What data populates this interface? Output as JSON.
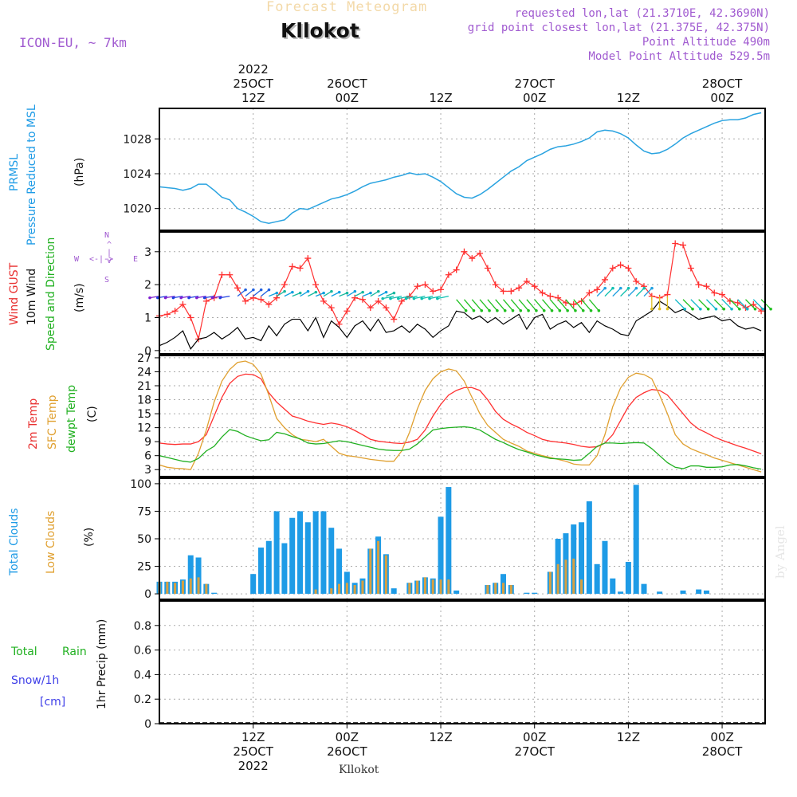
{
  "header": {
    "faded_title": "Forecast Meteogram",
    "location": "Kllokot",
    "model": "ICON-EU, ~ 7km",
    "requested": "requested lon,lat (21.3710E, 42.3690N)",
    "grid_point": "grid point closest lon,lat (21.375E, 42.375N)",
    "point_altitude": "Point Altitude 490m",
    "model_altitude": "Model Point Altitude 529.5m",
    "watermark": "by Angel",
    "bottom_location": "Kllokot"
  },
  "time_axis": {
    "top": [
      {
        "t": 12,
        "lines": [
          "2022",
          "25OCT",
          "12Z"
        ]
      },
      {
        "t": 24,
        "lines": [
          "26OCT",
          "00Z"
        ]
      },
      {
        "t": 36,
        "lines": [
          "12Z"
        ]
      },
      {
        "t": 48,
        "lines": [
          "27OCT",
          "00Z"
        ]
      },
      {
        "t": 60,
        "lines": [
          "12Z"
        ]
      },
      {
        "t": 72,
        "lines": [
          "28OCT",
          "00Z"
        ]
      }
    ],
    "bottom": [
      {
        "t": 12,
        "lines": [
          "12Z",
          "25OCT",
          "2022"
        ]
      },
      {
        "t": 24,
        "lines": [
          "00Z",
          "26OCT"
        ]
      },
      {
        "t": 36,
        "lines": [
          "12Z"
        ]
      },
      {
        "t": 48,
        "lines": [
          "00Z",
          "27OCT"
        ]
      },
      {
        "t": 60,
        "lines": [
          "12Z"
        ]
      },
      {
        "t": 72,
        "lines": [
          "00Z",
          "28OCT"
        ]
      }
    ]
  },
  "panel_labels": {
    "pressure": {
      "a": "PRMSL",
      "b": "Pressure Reduced to MSL",
      "unit": "(hPa)"
    },
    "wind": {
      "gust": "Wind GUST",
      "wind10": "10m Wind",
      "dir": "Speed and Direction",
      "unit": "(m/s)"
    },
    "compass": {
      "n": "N",
      "s": "S",
      "w": "W",
      "e": "E",
      "arrow": "<-|->"
    },
    "temp": {
      "t2m": "2m Temp",
      "sfc": "SFC Temp",
      "dew": "dewpt Temp",
      "unit": "(C)"
    },
    "clouds": {
      "total": "Total Clouds",
      "low": "Low Clouds",
      "unit": "(%)"
    },
    "precip": {
      "total": "Total",
      "rain": "Rain",
      "snow": "Snow/1h",
      "cm": "[cm]",
      "axis": "1hr Precip (mm)"
    }
  },
  "chart_data": [
    {
      "type": "line",
      "title": "PRMSL Pressure Reduced to MSL",
      "ylabel": "(hPa)",
      "x_unit": "hours from 2022-10-25 00Z",
      "ylim": [
        1017.5,
        1031.5
      ],
      "yticks": [
        1020,
        1024,
        1028
      ],
      "color": "#2aa3e0",
      "x": [
        0,
        1,
        2,
        3,
        4,
        5,
        6,
        7,
        8,
        9,
        10,
        11,
        12,
        13,
        14,
        15,
        16,
        17,
        18,
        19,
        20,
        21,
        22,
        23,
        24,
        25,
        26,
        27,
        28,
        29,
        30,
        31,
        32,
        33,
        34,
        35,
        36,
        37,
        38,
        39,
        40,
        41,
        42,
        43,
        44,
        45,
        46,
        47,
        48,
        49,
        50,
        51,
        52,
        53,
        54,
        55,
        56,
        57,
        58,
        59,
        60,
        61,
        62,
        63,
        64,
        65,
        66,
        67,
        68,
        69,
        70,
        71,
        72,
        73,
        74,
        75,
        76,
        77
      ],
      "values": [
        1022.5,
        1022.4,
        1022.3,
        1022.1,
        1022.3,
        1022.8,
        1022.8,
        1022.1,
        1021.3,
        1021.0,
        1020.0,
        1019.6,
        1019.1,
        1018.5,
        1018.3,
        1018.5,
        1018.7,
        1019.5,
        1020.0,
        1019.9,
        1020.3,
        1020.7,
        1021.1,
        1021.3,
        1021.6,
        1022.0,
        1022.5,
        1022.9,
        1023.1,
        1023.3,
        1023.6,
        1023.8,
        1024.1,
        1023.9,
        1024.0,
        1023.6,
        1023.1,
        1022.4,
        1021.7,
        1021.3,
        1021.2,
        1021.6,
        1022.2,
        1022.9,
        1023.6,
        1024.3,
        1024.8,
        1025.5,
        1025.9,
        1026.3,
        1026.8,
        1027.1,
        1027.2,
        1027.4,
        1027.7,
        1028.1,
        1028.8,
        1029.0,
        1028.9,
        1028.6,
        1028.1,
        1027.3,
        1026.6,
        1026.3,
        1026.4,
        1026.8,
        1027.4,
        1028.1,
        1028.6,
        1029.0,
        1029.4,
        1029.8,
        1030.1,
        1030.2,
        1030.2,
        1030.4,
        1030.8,
        1031.0
      ]
    },
    {
      "type": "line",
      "title": "Wind GUST / 10m Wind Speed and Direction",
      "ylabel": "(m/s)",
      "ylim": [
        -0.1,
        3.6
      ],
      "yticks": [
        0,
        1,
        2,
        3
      ],
      "x": [
        0,
        1,
        2,
        3,
        4,
        5,
        6,
        7,
        8,
        9,
        10,
        11,
        12,
        13,
        14,
        15,
        16,
        17,
        18,
        19,
        20,
        21,
        22,
        23,
        24,
        25,
        26,
        27,
        28,
        29,
        30,
        31,
        32,
        33,
        34,
        35,
        36,
        37,
        38,
        39,
        40,
        41,
        42,
        43,
        44,
        45,
        46,
        47,
        48,
        49,
        50,
        51,
        52,
        53,
        54,
        55,
        56,
        57,
        58,
        59,
        60,
        61,
        62,
        63,
        64,
        65,
        66,
        67,
        68,
        69,
        70,
        71,
        72,
        73,
        74,
        75,
        76,
        77
      ],
      "series": [
        {
          "name": "Wind GUST",
          "color": "#ff3030",
          "marker": "+",
          "values": [
            1.05,
            1.1,
            1.2,
            1.4,
            1.0,
            0.35,
            1.5,
            1.6,
            2.3,
            2.3,
            1.9,
            1.5,
            1.6,
            1.55,
            1.4,
            1.6,
            2.0,
            2.55,
            2.5,
            2.8,
            2.0,
            1.5,
            1.3,
            0.8,
            1.2,
            1.6,
            1.55,
            1.3,
            1.5,
            1.3,
            0.95,
            1.5,
            1.65,
            1.95,
            2.0,
            1.8,
            1.85,
            2.3,
            2.45,
            3.0,
            2.8,
            2.95,
            2.5,
            2.0,
            1.8,
            1.8,
            1.9,
            2.1,
            1.95,
            1.75,
            1.65,
            1.6,
            1.45,
            1.4,
            1.5,
            1.75,
            1.85,
            2.15,
            2.5,
            2.6,
            2.5,
            2.1,
            1.95,
            1.65,
            1.6,
            1.7,
            3.25,
            3.2,
            2.5,
            2.0,
            1.95,
            1.75,
            1.7,
            1.5,
            1.45,
            1.3,
            1.4,
            1.2
          ]
        },
        {
          "name": "10m Wind",
          "color": "#000000",
          "marker": "",
          "values": [
            0.15,
            0.25,
            0.4,
            0.6,
            0.05,
            0.35,
            0.4,
            0.55,
            0.35,
            0.5,
            0.7,
            0.35,
            0.4,
            0.3,
            0.75,
            0.45,
            0.8,
            0.95,
            0.95,
            0.6,
            1.0,
            0.4,
            0.9,
            0.7,
            0.4,
            0.75,
            0.9,
            0.6,
            0.95,
            0.55,
            0.6,
            0.75,
            0.55,
            0.8,
            0.65,
            0.4,
            0.6,
            0.75,
            1.2,
            1.15,
            0.95,
            1.05,
            0.85,
            1.0,
            0.8,
            0.95,
            1.1,
            0.65,
            1.0,
            1.1,
            0.65,
            0.8,
            0.9,
            0.7,
            0.85,
            0.55,
            0.9,
            0.75,
            0.65,
            0.5,
            0.45,
            0.9,
            1.05,
            1.2,
            1.5,
            1.35,
            1.15,
            1.25,
            1.1,
            0.95,
            1.0,
            1.05,
            0.9,
            0.95,
            0.75,
            0.65,
            0.7,
            0.6
          ]
        }
      ],
      "direction_arrows": "coloured arrows along the 10m wind, one per hour"
    },
    {
      "type": "line",
      "title": "2m Temp / SFC Temp / dewpt Temp",
      "ylabel": "(C)",
      "ylim": [
        1.5,
        27.5
      ],
      "yticks": [
        3,
        6,
        9,
        12,
        15,
        18,
        21,
        24,
        27
      ],
      "x": [
        0,
        1,
        2,
        3,
        4,
        5,
        6,
        7,
        8,
        9,
        10,
        11,
        12,
        13,
        14,
        15,
        16,
        17,
        18,
        19,
        20,
        21,
        22,
        23,
        24,
        25,
        26,
        27,
        28,
        29,
        30,
        31,
        32,
        33,
        34,
        35,
        36,
        37,
        38,
        39,
        40,
        41,
        42,
        43,
        44,
        45,
        46,
        47,
        48,
        49,
        50,
        51,
        52,
        53,
        54,
        55,
        56,
        57,
        58,
        59,
        60,
        61,
        62,
        63,
        64,
        65,
        66,
        67,
        68,
        69,
        70,
        71,
        72,
        73,
        74,
        75,
        76,
        77
      ],
      "series": [
        {
          "name": "2m Temp",
          "color": "#ff3030",
          "values": [
            8.7,
            8.5,
            8.4,
            8.5,
            8.5,
            9.0,
            10.5,
            14.5,
            18.5,
            21.5,
            23.0,
            23.5,
            23.4,
            22.5,
            19.5,
            17.5,
            16.0,
            14.5,
            14.0,
            13.4,
            13.0,
            12.7,
            13.0,
            12.7,
            12.2,
            11.4,
            10.5,
            9.5,
            9.1,
            8.9,
            8.7,
            8.6,
            8.9,
            9.5,
            11.5,
            14.5,
            17.0,
            19.0,
            20.0,
            20.6,
            20.6,
            20.0,
            18.0,
            15.5,
            13.8,
            12.8,
            12.0,
            11.0,
            10.3,
            9.5,
            9.1,
            8.9,
            8.7,
            8.4,
            8.0,
            7.8,
            7.9,
            8.7,
            10.5,
            13.5,
            16.5,
            18.5,
            19.5,
            20.2,
            20.0,
            19.0,
            17.0,
            15.0,
            13.0,
            11.7,
            10.9,
            10.0,
            9.3,
            8.7,
            8.1,
            7.6,
            7.0,
            6.4
          ]
        },
        {
          "name": "SFC Temp",
          "color": "#e0a030",
          "values": [
            4.0,
            3.5,
            3.3,
            3.2,
            3.0,
            6.5,
            11.5,
            17.5,
            22.0,
            24.5,
            26.0,
            26.3,
            25.6,
            23.5,
            19.0,
            14.0,
            12.0,
            10.5,
            9.5,
            9.3,
            9.0,
            9.5,
            8.0,
            6.5,
            6.0,
            5.8,
            5.5,
            5.2,
            5.0,
            4.8,
            4.8,
            7.0,
            11.0,
            16.0,
            20.0,
            22.5,
            24.0,
            24.6,
            24.2,
            22.0,
            18.5,
            15.0,
            12.5,
            11.0,
            9.5,
            8.7,
            8.0,
            7.0,
            6.5,
            6.0,
            5.6,
            5.2,
            4.8,
            4.2,
            4.0,
            4.0,
            6.0,
            10.5,
            16.5,
            20.5,
            22.8,
            23.7,
            23.4,
            22.5,
            19.0,
            15.0,
            10.5,
            8.5,
            7.5,
            6.8,
            6.2,
            5.5,
            5.0,
            4.5,
            4.0,
            3.5,
            3.0,
            2.5
          ]
        },
        {
          "name": "dewpt Temp",
          "color": "#20b020",
          "values": [
            6.0,
            5.6,
            5.2,
            4.8,
            4.6,
            5.4,
            7.0,
            8.0,
            10.0,
            11.6,
            11.2,
            10.3,
            9.7,
            9.2,
            9.4,
            11.0,
            10.7,
            10.1,
            9.6,
            8.7,
            8.5,
            8.6,
            8.9,
            9.2,
            9.0,
            8.6,
            8.2,
            7.8,
            7.4,
            7.2,
            7.1,
            7.1,
            7.4,
            8.5,
            10.0,
            11.5,
            11.8,
            12.0,
            12.1,
            12.2,
            12.0,
            11.5,
            10.5,
            9.5,
            8.8,
            8.0,
            7.3,
            6.8,
            6.2,
            5.8,
            5.4,
            5.3,
            5.2,
            5.0,
            5.1,
            6.5,
            8.0,
            8.7,
            8.7,
            8.6,
            8.7,
            8.8,
            8.7,
            7.5,
            6.0,
            4.5,
            3.5,
            3.2,
            3.8,
            3.8,
            3.5,
            3.5,
            3.6,
            4.0,
            4.1,
            3.8,
            3.4,
            3.1
          ]
        }
      ]
    },
    {
      "type": "bar",
      "title": "Total Clouds / Low Clouds",
      "ylabel": "(%)",
      "ylim": [
        -5,
        105
      ],
      "yticks": [
        0,
        25,
        50,
        75,
        100
      ],
      "x": [
        0,
        1,
        2,
        3,
        4,
        5,
        6,
        7,
        8,
        9,
        10,
        11,
        12,
        13,
        14,
        15,
        16,
        17,
        18,
        19,
        20,
        21,
        22,
        23,
        24,
        25,
        26,
        27,
        28,
        29,
        30,
        31,
        32,
        33,
        34,
        35,
        36,
        37,
        38,
        39,
        40,
        41,
        42,
        43,
        44,
        45,
        46,
        47,
        48,
        49,
        50,
        51,
        52,
        53,
        54,
        55,
        56,
        57,
        58,
        59,
        60,
        61,
        62,
        63,
        64,
        65,
        66,
        67,
        68,
        69,
        70,
        71,
        72,
        73,
        74,
        75,
        76,
        77
      ],
      "series": [
        {
          "name": "Total Clouds",
          "color": "#1e9be6",
          "values": [
            11,
            11,
            11,
            13,
            35,
            33,
            9,
            1,
            0,
            0,
            0,
            0,
            18,
            42,
            48,
            75,
            46,
            69,
            75,
            65,
            75,
            75,
            60,
            41,
            20,
            10,
            14,
            41,
            52,
            36,
            5,
            0,
            10,
            12,
            15,
            14,
            70,
            97,
            3,
            0,
            0,
            0,
            8,
            10,
            18,
            8,
            0,
            1,
            1,
            0,
            20,
            50,
            55,
            63,
            65,
            84,
            27,
            48,
            14,
            2,
            29,
            99,
            9,
            0,
            2,
            0,
            0,
            3,
            0,
            4,
            3,
            0,
            0,
            0,
            0,
            0,
            0,
            0
          ]
        },
        {
          "name": "Low Clouds",
          "color": "#d8a040",
          "values": [
            11,
            11,
            10,
            12,
            14,
            15,
            9,
            0,
            0,
            0,
            0,
            0,
            0,
            0,
            0,
            0,
            0,
            0,
            0,
            0,
            4,
            0,
            5,
            9,
            10,
            8,
            12,
            41,
            48,
            35,
            0,
            0,
            10,
            12,
            15,
            13,
            13,
            13,
            0,
            0,
            0,
            0,
            8,
            10,
            10,
            8,
            0,
            0,
            0,
            0,
            20,
            27,
            31,
            32,
            13,
            0,
            0,
            0,
            0,
            0,
            0,
            0,
            0,
            0,
            0,
            0,
            0,
            0,
            0,
            0,
            0,
            0,
            0,
            0,
            0,
            0,
            0,
            0
          ]
        }
      ]
    },
    {
      "type": "bar",
      "title": "1hr Precip (mm)",
      "ylabel": "1hr Precip (mm)",
      "ylim": [
        0,
        1.0
      ],
      "yticks": [
        0,
        0.2,
        0.4,
        0.6,
        0.8
      ],
      "series": [
        {
          "name": "Total Rain",
          "values": []
        }
      ]
    }
  ]
}
